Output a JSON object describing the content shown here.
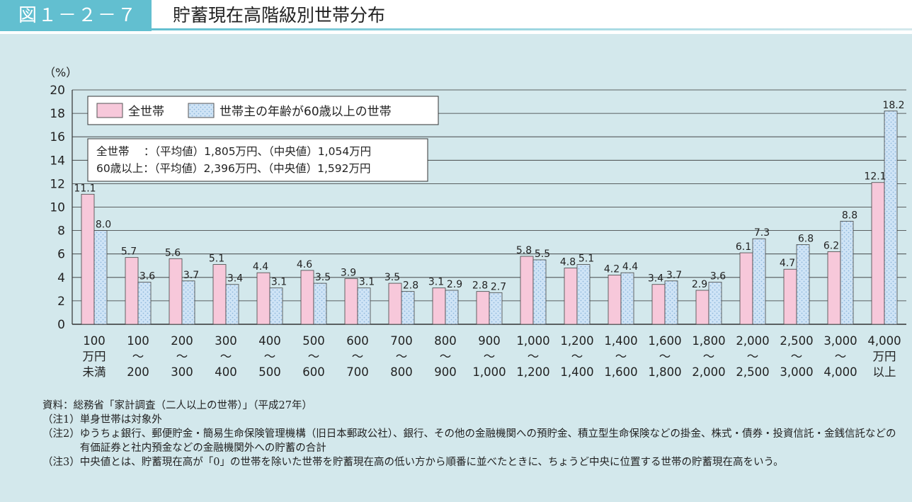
{
  "figure": {
    "badge": "図１－２－７",
    "title": "貯蓄現在高階級別世帯分布"
  },
  "colors": {
    "all_households": "#f7c8da",
    "elderly_households": "#cfe4f6",
    "elderly_dots": "#8fb8dc",
    "badge": "#62bfd0",
    "background": "#d3e8ec"
  },
  "chart_data": {
    "type": "bar",
    "y_unit_label": "（%）",
    "ylim": [
      0,
      20
    ],
    "yticks": [
      0,
      2,
      4,
      6,
      8,
      10,
      12,
      14,
      16,
      18,
      20
    ],
    "grid": true,
    "legend_position": "top-left",
    "categories": [
      [
        "100",
        "万円",
        "未満"
      ],
      [
        "100",
        "～",
        "200"
      ],
      [
        "200",
        "～",
        "300"
      ],
      [
        "300",
        "～",
        "400"
      ],
      [
        "400",
        "～",
        "500"
      ],
      [
        "500",
        "～",
        "600"
      ],
      [
        "600",
        "～",
        "700"
      ],
      [
        "700",
        "～",
        "800"
      ],
      [
        "800",
        "～",
        "900"
      ],
      [
        "900",
        "～",
        "1,000"
      ],
      [
        "1,000",
        "～",
        "1,200"
      ],
      [
        "1,200",
        "～",
        "1,400"
      ],
      [
        "1,400",
        "～",
        "1,600"
      ],
      [
        "1,600",
        "～",
        "1,800"
      ],
      [
        "1,800",
        "～",
        "2,000"
      ],
      [
        "2,000",
        "～",
        "2,500"
      ],
      [
        "2,500",
        "～",
        "3,000"
      ],
      [
        "3,000",
        "～",
        "4,000"
      ],
      [
        "4,000",
        "万円",
        "以上"
      ]
    ],
    "series": [
      {
        "name": "全世帯",
        "values": [
          11.1,
          5.7,
          5.6,
          5.1,
          4.4,
          4.6,
          3.9,
          3.5,
          3.1,
          2.8,
          5.8,
          4.8,
          4.2,
          3.4,
          2.9,
          6.1,
          4.7,
          6.2,
          12.1
        ]
      },
      {
        "name": "世帯主の年齢が60歳以上の世帯",
        "values": [
          8.0,
          3.6,
          3.7,
          3.4,
          3.1,
          3.5,
          3.1,
          2.8,
          2.9,
          2.7,
          5.5,
          5.1,
          4.4,
          3.7,
          3.6,
          7.3,
          6.8,
          8.8,
          18.2
        ]
      }
    ],
    "info_box": [
      "全世帯　 ：（平均値）1,805万円、（中央値）1,054万円",
      "60歳以上：（平均値）2,396万円、（中央値）1,592万円"
    ]
  },
  "notes": [
    {
      "label": "資料：",
      "text": "総務省「家計調査（二人以上の世帯）」（平成27年）"
    },
    {
      "label": "（注1）",
      "text": "単身世帯は対象外"
    },
    {
      "label": "（注2）",
      "text": "ゆうちょ銀行、郵便貯金・簡易生命保険管理機構（旧日本郵政公社）、銀行、その他の金融機関への預貯金、積立型生命保険などの掛金、株式・債券・投資信託・金銭信託などの有価証券と社内預金などの金融機関外への貯蓄の合計"
    },
    {
      "label": "（注3）",
      "text": "中央値とは、貯蓄現在高が「0」の世帯を除いた世帯を貯蓄現在高の低い方から順番に並べたときに、ちょうど中央に位置する世帯の貯蓄現在高をいう。"
    }
  ]
}
